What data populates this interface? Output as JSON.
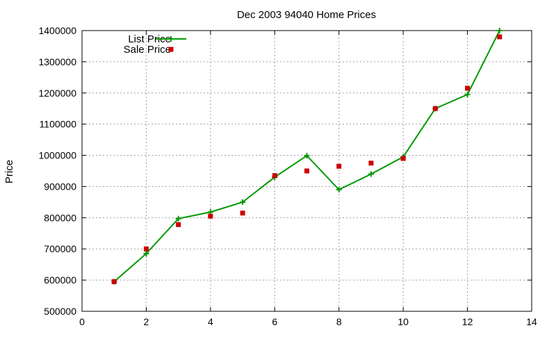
{
  "chart_data": {
    "type": "line",
    "title": "Dec 2003 94040 Home Prices",
    "xlabel": "",
    "ylabel": "Price",
    "xlim": [
      0,
      14
    ],
    "ylim": [
      500000,
      1400000
    ],
    "x_ticks": [
      0,
      2,
      4,
      6,
      8,
      10,
      12,
      14
    ],
    "y_ticks": [
      500000,
      600000,
      700000,
      800000,
      900000,
      1000000,
      1100000,
      1200000,
      1300000,
      1400000
    ],
    "grid": true,
    "legend_position": "top-left",
    "series": [
      {
        "name": "List Price",
        "style": "lines+points",
        "marker": "plus",
        "color": "#009900",
        "x": [
          1,
          2,
          3,
          4,
          5,
          6,
          7,
          8,
          9,
          10,
          11,
          12,
          13
        ],
        "y": [
          595000,
          685000,
          797000,
          818000,
          850000,
          930000,
          999000,
          890000,
          940000,
          995000,
          1150000,
          1195000,
          1400000
        ]
      },
      {
        "name": "Sale Price",
        "style": "points",
        "marker": "square",
        "color": "#cc0000",
        "x": [
          1,
          2,
          3,
          4,
          5,
          6,
          7,
          8,
          9,
          10,
          11,
          12,
          13
        ],
        "y": [
          595000,
          700000,
          778000,
          805000,
          815000,
          935000,
          950000,
          965000,
          975000,
          990000,
          1150000,
          1215000,
          1380000
        ]
      }
    ]
  }
}
